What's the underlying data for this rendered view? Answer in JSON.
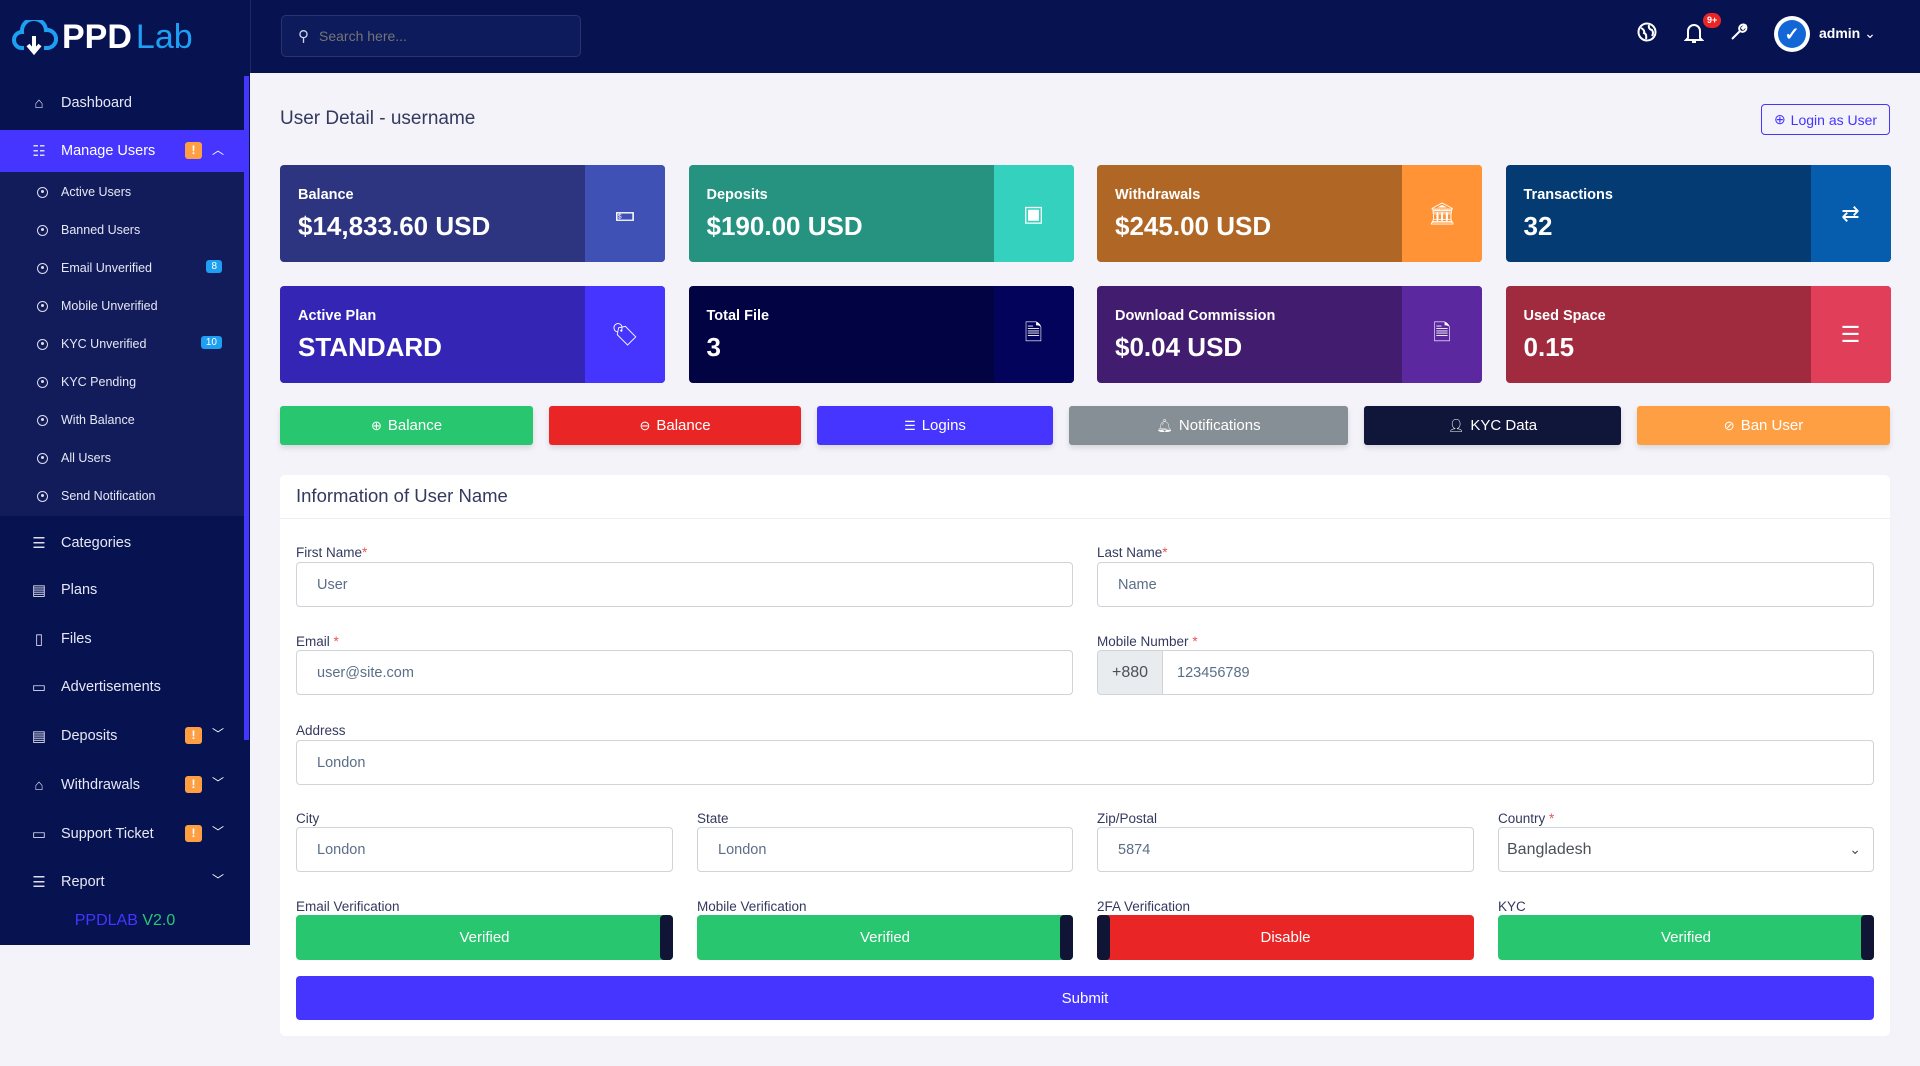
{
  "brand": {
    "logo_main": "PPD",
    "logo_accent": "Lab",
    "version_name": "PPDLAB",
    "version_number": "V2.0"
  },
  "search": {
    "placeholder": "Search here..."
  },
  "topbar": {
    "notification_count": "9+",
    "user": "admin"
  },
  "sidebar": {
    "items": [
      {
        "label": "Dashboard",
        "icon": "home-icon"
      },
      {
        "label": "Manage Users",
        "icon": "users-icon",
        "badge": "!"
      },
      {
        "label": "Categories",
        "icon": "categories-icon"
      },
      {
        "label": "Plans",
        "icon": "table-icon"
      },
      {
        "label": "Files",
        "icon": "file-icon"
      },
      {
        "label": "Advertisements",
        "icon": "ad-icon"
      },
      {
        "label": "Deposits",
        "icon": "deposit-icon",
        "badge": "!"
      },
      {
        "label": "Withdrawals",
        "icon": "bank-icon",
        "badge": "!"
      },
      {
        "label": "Support Ticket",
        "icon": "ticket-icon",
        "badge": "!"
      },
      {
        "label": "Report",
        "icon": "list-icon"
      }
    ],
    "submenu": [
      {
        "label": "Active Users"
      },
      {
        "label": "Banned Users"
      },
      {
        "label": "Email Unverified",
        "count": "8"
      },
      {
        "label": "Mobile Unverified"
      },
      {
        "label": "KYC Unverified",
        "count": "10"
      },
      {
        "label": "KYC Pending"
      },
      {
        "label": "With Balance"
      },
      {
        "label": "All Users"
      },
      {
        "label": "Send Notification"
      }
    ]
  },
  "page": {
    "title": "User Detail - username",
    "login_as_user": "Login as User"
  },
  "stats": [
    {
      "label": "Balance",
      "value": "$14,833.60 USD",
      "color": "#2e3580",
      "icon_bg": "#4051b5"
    },
    {
      "label": "Deposits",
      "value": "$190.00 USD",
      "color": "#259380",
      "icon_bg": "#34d1bf"
    },
    {
      "label": "Withdrawals",
      "value": "$245.00 USD",
      "color": "#b06624",
      "icon_bg": "#ff9335"
    },
    {
      "label": "Transactions",
      "value": "32",
      "color": "#043b73",
      "icon_bg": "#065dad"
    },
    {
      "label": "Active Plan",
      "value": "STANDARD",
      "color": "#3525b5",
      "icon_bg": "#4634ff"
    },
    {
      "label": "Total File",
      "value": "3",
      "color": "#020342",
      "icon_bg": "#03035c"
    },
    {
      "label": "Download Commission",
      "value": "$0.04 USD",
      "color": "#421c6e",
      "icon_bg": "#5c28a0"
    },
    {
      "label": "Used Space",
      "value": "0.15",
      "color": "#a12b3e",
      "icon_bg": "#e13e5a"
    }
  ],
  "actions": [
    {
      "label": "Balance",
      "color": "#28c76f"
    },
    {
      "label": "Balance",
      "color": "#ea2525"
    },
    {
      "label": "Logins",
      "color": "#4634ff"
    },
    {
      "label": "Notifications",
      "color": "#868e96"
    },
    {
      "label": "KYC Data",
      "color": "#10163a"
    },
    {
      "label": "Ban User",
      "color": "#ff9f43"
    }
  ],
  "form": {
    "heading": "Information of User Name",
    "first_name": {
      "label": "First Name",
      "value": "User"
    },
    "last_name": {
      "label": "Last Name",
      "value": "Name"
    },
    "email": {
      "label": "Email",
      "value": "user@site.com"
    },
    "mobile": {
      "label": "Mobile Number",
      "prefix": "+880",
      "value": "123456789"
    },
    "address": {
      "label": "Address",
      "value": "London"
    },
    "city": {
      "label": "City",
      "value": "London"
    },
    "state": {
      "label": "State",
      "value": "London"
    },
    "zip": {
      "label": "Zip/Postal",
      "value": "5874"
    },
    "country": {
      "label": "Country",
      "value": "Bangladesh"
    },
    "email_verification": {
      "label": "Email Verification",
      "value": "Verified"
    },
    "mobile_verification": {
      "label": "Mobile Verification",
      "value": "Verified"
    },
    "twofa_verification": {
      "label": "2FA Verification",
      "value": "Disable"
    },
    "kyc": {
      "label": "KYC",
      "value": "Verified"
    },
    "submit": "Submit",
    "required_mark": "*"
  }
}
